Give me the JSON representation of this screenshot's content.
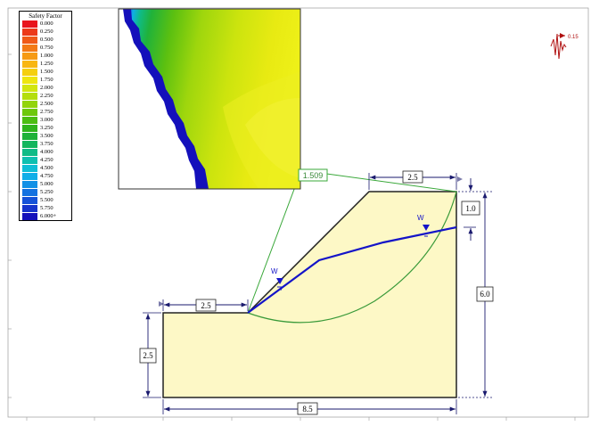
{
  "legend": {
    "title": "Safety Factor",
    "entries": [
      {
        "label": "0.000",
        "color": "#e8141d"
      },
      {
        "label": "0.250",
        "color": "#ec3a1a"
      },
      {
        "label": "0.500",
        "color": "#f05a18"
      },
      {
        "label": "0.750",
        "color": "#f37a16"
      },
      {
        "label": "1.000",
        "color": "#f69a14"
      },
      {
        "label": "1.250",
        "color": "#f8b612"
      },
      {
        "label": "1.500",
        "color": "#f5cf10"
      },
      {
        "label": "1.750",
        "color": "#eee60f"
      },
      {
        "label": "2.000",
        "color": "#d2e60e"
      },
      {
        "label": "2.250",
        "color": "#b4de0d"
      },
      {
        "label": "2.500",
        "color": "#92d40c"
      },
      {
        "label": "2.750",
        "color": "#6ec80c"
      },
      {
        "label": "3.000",
        "color": "#4cbe12"
      },
      {
        "label": "3.250",
        "color": "#2fb51c"
      },
      {
        "label": "3.500",
        "color": "#1fb23a"
      },
      {
        "label": "3.750",
        "color": "#13b65e"
      },
      {
        "label": "4.000",
        "color": "#0fbb86"
      },
      {
        "label": "4.250",
        "color": "#0ec0b0"
      },
      {
        "label": "4.500",
        "color": "#0fbed6"
      },
      {
        "label": "4.750",
        "color": "#10aee8"
      },
      {
        "label": "5.000",
        "color": "#1291e6"
      },
      {
        "label": "5.250",
        "color": "#1472e0"
      },
      {
        "label": "5.500",
        "color": "#1552d8"
      },
      {
        "label": "5.750",
        "color": "#1634cc"
      },
      {
        "label": "6.000+",
        "color": "#1410bb"
      }
    ]
  },
  "model": {
    "safety_factor": "1.509",
    "seismic_coefficient": "0.15",
    "water_marker": "W",
    "dimensions": {
      "crest_width": "2.5",
      "toe_width": "2.5",
      "toe_height": "2.5",
      "total_height": "6.0",
      "top_offset": "1.0",
      "total_width": "8.5"
    }
  },
  "colors": {
    "soil": "#fdf8c6",
    "water_table": "#1414c8",
    "slip_circle": "#3a9a3a",
    "callout": "#3aa83a",
    "seismic": "#b01010",
    "dimension": "#1a1a6e"
  }
}
